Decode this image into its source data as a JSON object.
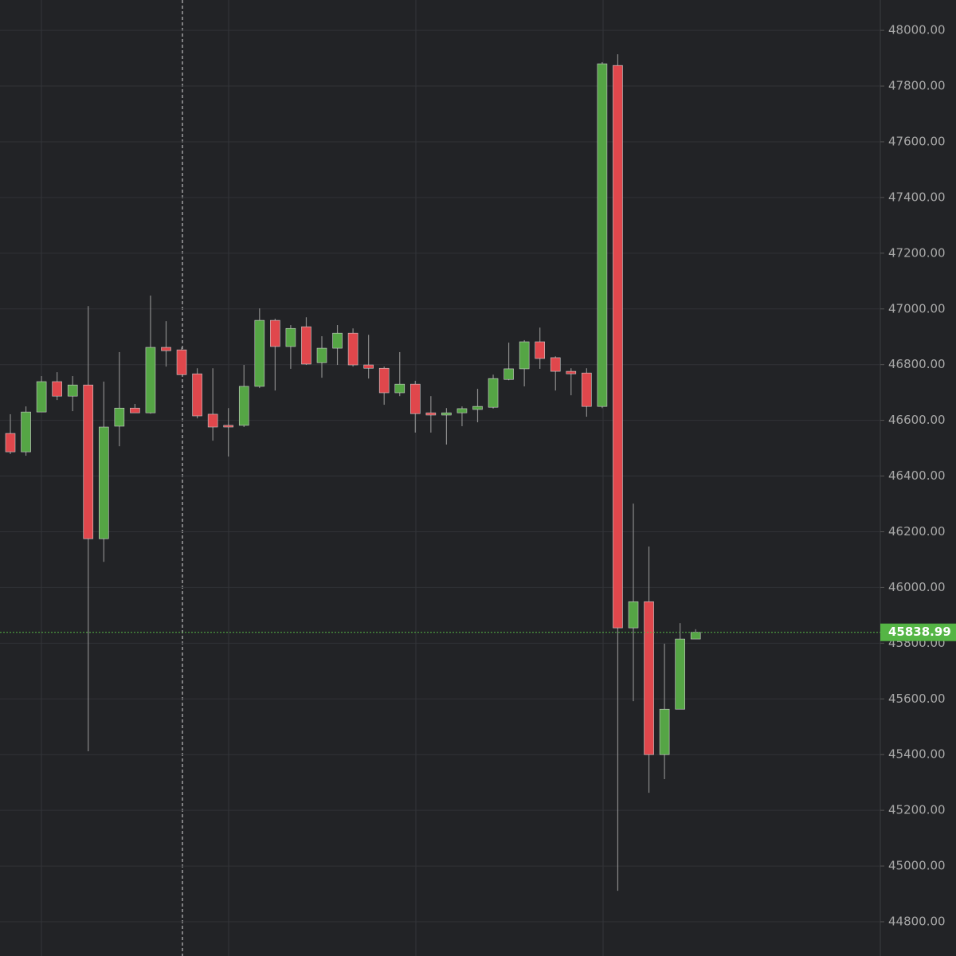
{
  "chart_data": {
    "type": "candlestick",
    "open": [
      46553,
      46487,
      46630,
      46739,
      46687,
      46727,
      46175,
      46579,
      46644,
      46627,
      46862,
      46853,
      46767,
      46622,
      46582,
      46582,
      46722,
      46959,
      46865,
      46936,
      46807,
      46859,
      46913,
      46799,
      46787,
      46699,
      46730,
      46627,
      46619,
      46627,
      46639,
      46647,
      46747,
      46785,
      46882,
      46825,
      46776,
      46770,
      46650,
      47874,
      45855,
      45949,
      45400,
      45563,
      45815
    ],
    "high": [
      46622,
      46650,
      46759,
      46773,
      46759,
      47010,
      46739,
      46845,
      46659,
      47048,
      46956,
      46862,
      46787,
      46787,
      46644,
      46799,
      47002,
      46965,
      46942,
      46970,
      46902,
      46942,
      46930,
      46907,
      46793,
      46845,
      46742,
      46687,
      46644,
      46650,
      46713,
      46764,
      46879,
      46888,
      46933,
      46830,
      46787,
      46787,
      47886,
      47914,
      46301,
      46147,
      45798,
      45872,
      45850
    ],
    "low": [
      46479,
      46473,
      46630,
      46673,
      46633,
      45412,
      46092,
      46507,
      46627,
      46624,
      46793,
      46764,
      46607,
      46527,
      46470,
      46576,
      46716,
      46707,
      46785,
      46799,
      46753,
      46799,
      46793,
      46750,
      46656,
      46687,
      46556,
      46556,
      46513,
      46579,
      46593,
      46642,
      46744,
      46722,
      46785,
      46707,
      46690,
      46613,
      46644,
      44911,
      45592,
      45263,
      45312,
      45563,
      45815
    ],
    "close": [
      46487,
      46630,
      46739,
      46687,
      46727,
      46175,
      46576,
      46644,
      46627,
      46862,
      46850,
      46764,
      46616,
      46576,
      46576,
      46722,
      46959,
      46865,
      46930,
      46802,
      46859,
      46913,
      46799,
      46787,
      46699,
      46730,
      46624,
      46619,
      46627,
      46642,
      46650,
      46750,
      46785,
      46882,
      46822,
      46776,
      46767,
      46650,
      47880,
      45855,
      45949,
      45400,
      45563,
      45815,
      45838.99
    ],
    "up_color": "#55a545",
    "down_color": "#e0474c",
    "ylim": [
      44677,
      48109
    ],
    "yticks": [
      {
        "value": 44800,
        "label": "44800.00"
      },
      {
        "value": 45000,
        "label": "45000.00"
      },
      {
        "value": 45200,
        "label": "45200.00"
      },
      {
        "value": 45400,
        "label": "45400.00"
      },
      {
        "value": 45600,
        "label": "45600.00"
      },
      {
        "value": 45800,
        "label": "45800.00"
      },
      {
        "value": 46000,
        "label": "46000.00"
      },
      {
        "value": 46200,
        "label": "46200.00"
      },
      {
        "value": 46400,
        "label": "46400.00"
      },
      {
        "value": 46600,
        "label": "46600.00"
      },
      {
        "value": 46800,
        "label": "46800.00"
      },
      {
        "value": 47000,
        "label": "47000.00"
      },
      {
        "value": 47200,
        "label": "47200.00"
      },
      {
        "value": 47400,
        "label": "47400.00"
      },
      {
        "value": 47600,
        "label": "47600.00"
      },
      {
        "value": 47800,
        "label": "47800.00"
      },
      {
        "value": 48000,
        "label": "48000.00"
      }
    ],
    "grid": true,
    "last_price": 45838.99
  }
}
